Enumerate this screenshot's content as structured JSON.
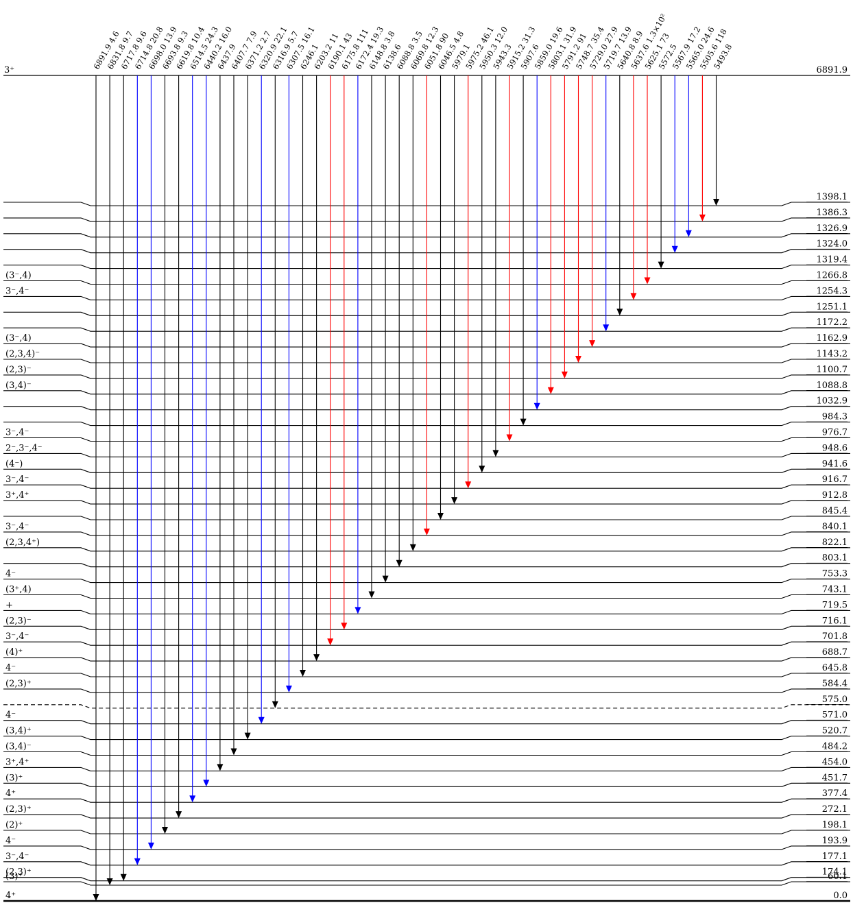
{
  "top_level": {
    "jpi": "3⁺",
    "energy": "6891.9"
  },
  "levels": [
    {
      "energy": "1398.1",
      "jpi": ""
    },
    {
      "energy": "1386.3",
      "jpi": ""
    },
    {
      "energy": "1326.9",
      "jpi": ""
    },
    {
      "energy": "1324.0",
      "jpi": ""
    },
    {
      "energy": "1319.4",
      "jpi": ""
    },
    {
      "energy": "1266.8",
      "jpi": "(3⁻,4)"
    },
    {
      "energy": "1254.3",
      "jpi": "3⁻,4⁻"
    },
    {
      "energy": "1251.1",
      "jpi": ""
    },
    {
      "energy": "1172.2",
      "jpi": ""
    },
    {
      "energy": "1162.9",
      "jpi": "(3⁻,4)"
    },
    {
      "energy": "1143.2",
      "jpi": "(2,3,4)⁻"
    },
    {
      "energy": "1100.7",
      "jpi": "(2,3)⁻"
    },
    {
      "energy": "1088.8",
      "jpi": "(3,4)⁻"
    },
    {
      "energy": "1032.9",
      "jpi": ""
    },
    {
      "energy": "984.3",
      "jpi": ""
    },
    {
      "energy": "976.7",
      "jpi": "3⁻,4⁻"
    },
    {
      "energy": "948.6",
      "jpi": "2⁻,3⁻,4⁻"
    },
    {
      "energy": "941.6",
      "jpi": "(4⁻)"
    },
    {
      "energy": "916.7",
      "jpi": "3⁻,4⁻"
    },
    {
      "energy": "912.8",
      "jpi": "3⁺,4⁺"
    },
    {
      "energy": "845.4",
      "jpi": ""
    },
    {
      "energy": "840.1",
      "jpi": "3⁻,4⁻"
    },
    {
      "energy": "822.1",
      "jpi": "(2,3,4⁺)"
    },
    {
      "energy": "803.1",
      "jpi": ""
    },
    {
      "energy": "753.3",
      "jpi": "4⁻"
    },
    {
      "energy": "743.1",
      "jpi": "(3⁺,4)"
    },
    {
      "energy": "719.5",
      "jpi": "+"
    },
    {
      "energy": "716.1",
      "jpi": "(2,3)⁻"
    },
    {
      "energy": "701.8",
      "jpi": "3⁻,4⁻"
    },
    {
      "energy": "688.7",
      "jpi": "(4)⁺"
    },
    {
      "energy": "645.8",
      "jpi": "4⁻"
    },
    {
      "energy": "584.4",
      "jpi": "(2,3)⁺"
    },
    {
      "energy": "575.0",
      "jpi": "",
      "dashed": true
    },
    {
      "energy": "571.0",
      "jpi": "4⁻"
    },
    {
      "energy": "520.7",
      "jpi": "(3,4)⁺"
    },
    {
      "energy": "484.2",
      "jpi": "(3,4)⁻"
    },
    {
      "energy": "454.0",
      "jpi": "3⁺,4⁺"
    },
    {
      "energy": "451.7",
      "jpi": "(3)⁺"
    },
    {
      "energy": "377.4",
      "jpi": "4⁺"
    },
    {
      "energy": "272.1",
      "jpi": "(2,3)⁺"
    },
    {
      "energy": "198.1",
      "jpi": "(2)⁺"
    },
    {
      "energy": "193.9",
      "jpi": "4⁻"
    },
    {
      "energy": "177.1",
      "jpi": "3⁻,4⁻"
    },
    {
      "energy": "174.1",
      "jpi": "(2,3)⁺"
    },
    {
      "energy": "60.1",
      "jpi": "(3)⁺"
    },
    {
      "energy": "0.0",
      "jpi": "4⁺",
      "ground": true
    }
  ],
  "transitions": [
    {
      "label": "6891.9 4.6",
      "color": "black",
      "to": "0.0"
    },
    {
      "label": "6831.8 9.7",
      "color": "black",
      "to": "60.1"
    },
    {
      "label": "6717.8 9.6",
      "color": "black",
      "to": "174.1"
    },
    {
      "label": "6714.8 20.8",
      "color": "blue",
      "to": "177.1"
    },
    {
      "label": "6698.0 13.9",
      "color": "blue",
      "to": "193.9"
    },
    {
      "label": "6693.8 9.3",
      "color": "black",
      "to": "198.1"
    },
    {
      "label": "6619.8 10.4",
      "color": "black",
      "to": "272.1"
    },
    {
      "label": "6514.5 24.3",
      "color": "blue",
      "to": "377.4"
    },
    {
      "label": "6440.2 16.0",
      "color": "blue",
      "to": "451.7"
    },
    {
      "label": "6437.9",
      "color": "black",
      "to": "454.0"
    },
    {
      "label": "6407.7 7.9",
      "color": "black",
      "to": "484.2"
    },
    {
      "label": "6371.2 2.7",
      "color": "black",
      "to": "520.7"
    },
    {
      "label": "6320.9 22.1",
      "color": "blue",
      "to": "571.0"
    },
    {
      "label": "6316.9 5.7",
      "color": "black",
      "to": "575.0"
    },
    {
      "label": "6307.5 16.1",
      "color": "blue",
      "to": "584.4"
    },
    {
      "label": "6246.1",
      "color": "black",
      "to": "645.8"
    },
    {
      "label": "6203.2 11",
      "color": "black",
      "to": "688.7"
    },
    {
      "label": "6190.1 43",
      "color": "red",
      "to": "701.8"
    },
    {
      "label": "6175.8 111",
      "color": "red",
      "to": "716.1"
    },
    {
      "label": "6172.4 19.3",
      "color": "blue",
      "to": "719.5"
    },
    {
      "label": "6148.8 3.8",
      "color": "black",
      "to": "743.1"
    },
    {
      "label": "6138.6",
      "color": "black",
      "to": "753.3"
    },
    {
      "label": "6088.8 3.5",
      "color": "black",
      "to": "803.1"
    },
    {
      "label": "6069.8 12.3",
      "color": "black",
      "to": "822.1"
    },
    {
      "label": "6051.8 90",
      "color": "red",
      "to": "840.1"
    },
    {
      "label": "6046.5 4.8",
      "color": "black",
      "to": "845.4"
    },
    {
      "label": "5979.1",
      "color": "black",
      "to": "912.8"
    },
    {
      "label": "5975.2 46.1",
      "color": "red",
      "to": "916.7"
    },
    {
      "label": "5950.3 12.0",
      "color": "black",
      "to": "941.6"
    },
    {
      "label": "5943.3",
      "color": "black",
      "to": "948.6"
    },
    {
      "label": "5915.2 31.3",
      "color": "red",
      "to": "976.7"
    },
    {
      "label": "5907.6",
      "color": "black",
      "to": "984.3"
    },
    {
      "label": "5859.0 19.6",
      "color": "blue",
      "to": "1032.9"
    },
    {
      "label": "5803.1 31.9",
      "color": "red",
      "to": "1088.8"
    },
    {
      "label": "5791.2 91",
      "color": "red",
      "to": "1100.7"
    },
    {
      "label": "5748.7 35.4",
      "color": "red",
      "to": "1143.2"
    },
    {
      "label": "5729.0 27.9",
      "color": "red",
      "to": "1162.9"
    },
    {
      "label": "5719.7 13.9",
      "color": "blue",
      "to": "1172.2"
    },
    {
      "label": "5640.8 8.9",
      "color": "black",
      "to": "1251.1"
    },
    {
      "label": "5637.6 1.3×10²",
      "color": "red",
      "to": "1254.3"
    },
    {
      "label": "5625.1 73",
      "color": "red",
      "to": "1266.8"
    },
    {
      "label": "5572.5",
      "color": "black",
      "to": "1319.4"
    },
    {
      "label": "5567.9 17.2",
      "color": "blue",
      "to": "1324.0"
    },
    {
      "label": "5565.0 24.6",
      "color": "blue",
      "to": "1326.9"
    },
    {
      "label": "5505.6 118",
      "color": "red",
      "to": "1386.3"
    },
    {
      "label": "5493.8",
      "color": "black",
      "to": "1398.1"
    }
  ],
  "colors": {
    "black": "#000000",
    "blue": "#0000ff",
    "red": "#ff0000"
  }
}
